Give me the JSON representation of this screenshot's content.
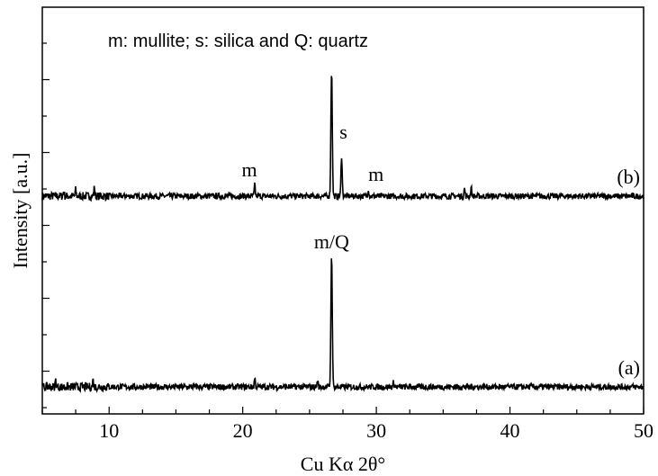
{
  "chart_data": {
    "type": "line",
    "title": "",
    "xlabel": "Cu Kα 2θ°",
    "ylabel": "Intensity [a.u.]",
    "xlim": [
      5,
      50
    ],
    "xticks": [
      10,
      20,
      30,
      40,
      50
    ],
    "note": "m: mullite; s: silica and Q: quartz",
    "series": [
      {
        "name": "(b)",
        "baseline": 0,
        "peaks": [
          {
            "x": 6.6,
            "y": 0.04
          },
          {
            "x": 7.5,
            "y": 0.05
          },
          {
            "x": 8.9,
            "y": 0.07
          },
          {
            "x": 20.9,
            "y": 0.09
          },
          {
            "x": 26.65,
            "y": 1.0
          },
          {
            "x": 27.4,
            "y": 0.32
          },
          {
            "x": 29.4,
            "y": 0.06
          },
          {
            "x": 36.6,
            "y": 0.06
          },
          {
            "x": 37.1,
            "y": 0.07
          }
        ]
      },
      {
        "name": "(a)",
        "baseline": 0,
        "peaks": [
          {
            "x": 6.0,
            "y": 0.05
          },
          {
            "x": 8.8,
            "y": 0.05
          },
          {
            "x": 20.9,
            "y": 0.07
          },
          {
            "x": 25.6,
            "y": 0.05
          },
          {
            "x": 26.65,
            "y": 1.0
          },
          {
            "x": 31.3,
            "y": 0.04
          }
        ]
      }
    ],
    "annotations": [
      {
        "text": "m",
        "x": 20.9,
        "series": "(b)"
      },
      {
        "text": "s",
        "x": 27.4,
        "series": "(b)"
      },
      {
        "text": "m",
        "x": 29.3,
        "series": "(b)"
      },
      {
        "text": "m/Q",
        "x": 26.65,
        "series": "(a)"
      }
    ]
  }
}
